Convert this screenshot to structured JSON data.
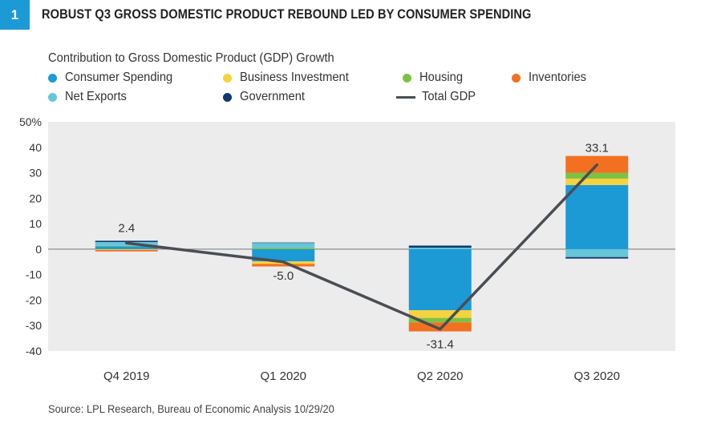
{
  "figure": {
    "number": "1",
    "title": "ROBUST Q3 GROSS DOMESTIC PRODUCT REBOUND LED BY CONSUMER SPENDING"
  },
  "source": "Source: LPL Research, Bureau of Economic Analysis   10/29/20",
  "chart_data": {
    "type": "bar",
    "subtype": "stacked bar with line overlay",
    "title": "Contribution to Gross Domestic Product (GDP) Growth",
    "categories": [
      "Q4 2019",
      "Q1 2020",
      "Q2 2020",
      "Q3 2020"
    ],
    "ylim": [
      -40,
      50
    ],
    "yticks": [
      -40,
      -30,
      -20,
      -10,
      0,
      10,
      20,
      30,
      40,
      50
    ],
    "ytick_labels": [
      "-40",
      "-30",
      "-20",
      "-10",
      "0",
      "10",
      "20",
      "30",
      "40",
      "50%"
    ],
    "grid": false,
    "legend_position": "top-left",
    "series": [
      {
        "name": "Consumer Spending",
        "color": "#1b9ad6",
        "values": [
          1.1,
          -4.8,
          -24.0,
          25.2
        ]
      },
      {
        "name": "Business Investment",
        "color": "#f6d23c",
        "values": [
          -0.3,
          -1.0,
          -3.0,
          2.5
        ]
      },
      {
        "name": "Housing",
        "color": "#7dc143",
        "values": [
          0.2,
          0.5,
          -1.8,
          2.3
        ]
      },
      {
        "name": "Inventories",
        "color": "#f37021",
        "values": [
          -0.6,
          -1.0,
          -3.5,
          6.6
        ]
      },
      {
        "name": "Net Exports",
        "color": "#67c6d8",
        "values": [
          1.5,
          1.9,
          0.6,
          -3.1
        ]
      },
      {
        "name": "Government",
        "color": "#0f3a6d",
        "values": [
          0.5,
          0.2,
          0.8,
          -0.6
        ]
      }
    ],
    "line": {
      "name": "Total GDP",
      "color": "#4a4d52",
      "values": [
        2.4,
        -5.0,
        -31.4,
        33.1
      ]
    },
    "data_labels": [
      "2.4",
      "-5.0",
      "-31.4",
      "33.1"
    ]
  }
}
